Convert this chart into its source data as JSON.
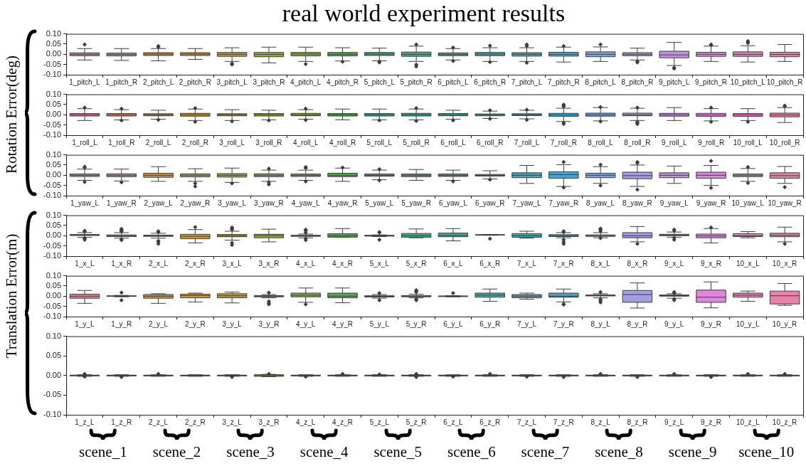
{
  "chart_data": [
    {
      "type": "box",
      "title": "real world experiment results",
      "categories": [
        "1_pitch_L",
        "1_pitch_R",
        "2_pitch_L",
        "2_pitch_R",
        "3_pitch_L",
        "3_pitch_R",
        "4_pitch_L",
        "4_pitch_R",
        "5_pitch_L",
        "5_pitch_R",
        "6_pitch_L",
        "6_pitch_R",
        "7_pitch_L",
        "7_pitch_R",
        "8_pitch_L",
        "8_pitch_R",
        "9_pitch_L",
        "9_pitch_R",
        "10_pitch_L",
        "10_pitch_R"
      ],
      "colors": [
        "#e8828c",
        "#e08a6f",
        "#d59048",
        "#c69a40",
        "#b1a03f",
        "#9da53f",
        "#84ab44",
        "#4daf4a",
        "#49ab79",
        "#47a98f",
        "#45a89e",
        "#45a8ab",
        "#46a7bb",
        "#49a4d0",
        "#7aa3e0",
        "#a39de3",
        "#c392e0",
        "#de85dc",
        "#e37fc0",
        "#e583a8"
      ],
      "marker": "diamond",
      "ylim": [
        -0.1,
        0.1
      ],
      "yticks": [
        {
          "value": -0.1,
          "label": "-0.10"
        },
        {
          "value": -0.05,
          "label": "-0.05"
        },
        {
          "value": 0,
          "label": "0.00"
        },
        {
          "value": 0.05,
          "label": "0.05"
        },
        {
          "value": 0.1,
          "label": "0.10"
        }
      ],
      "boxes": [
        {
          "low": -0.028,
          "q1": -0.007,
          "median": 0,
          "q3": 0.007,
          "high": 0.028,
          "outliers": [
            0.048
          ]
        },
        {
          "low": -0.03,
          "q1": -0.008,
          "median": -0.001,
          "q3": 0.006,
          "high": 0.028
        },
        {
          "low": -0.032,
          "q1": -0.006,
          "median": 0.001,
          "q3": 0.008,
          "high": 0.028,
          "outliers": [
            0.035,
            0.04
          ]
        },
        {
          "low": -0.025,
          "q1": -0.006,
          "median": 0.001,
          "q3": 0.008,
          "high": 0.028
        },
        {
          "low": -0.035,
          "q1": -0.01,
          "median": 0,
          "q3": 0.009,
          "high": 0.032,
          "outliers": [
            -0.045,
            -0.05
          ]
        },
        {
          "low": -0.042,
          "q1": -0.012,
          "median": -0.001,
          "q3": 0.009,
          "high": 0.035
        },
        {
          "low": -0.035,
          "q1": -0.008,
          "median": 0.001,
          "q3": 0.009,
          "high": 0.035,
          "outliers": [
            -0.048
          ]
        },
        {
          "low": -0.033,
          "q1": -0.008,
          "median": 0,
          "q3": 0.009,
          "high": 0.032,
          "outliers": [
            -0.036
          ]
        },
        {
          "low": -0.032,
          "q1": -0.006,
          "median": 0.001,
          "q3": 0.009,
          "high": 0.03,
          "outliers": [
            -0.035,
            -0.04
          ]
        },
        {
          "low": -0.035,
          "q1": -0.01,
          "median": 0,
          "q3": 0.011,
          "high": 0.04,
          "outliers": [
            0.048,
            -0.05,
            -0.06
          ]
        },
        {
          "low": -0.028,
          "q1": -0.007,
          "median": 0,
          "q3": 0.007,
          "high": 0.028,
          "outliers": [
            0.033,
            -0.033
          ]
        },
        {
          "low": -0.035,
          "q1": -0.007,
          "median": 0.001,
          "q3": 0.009,
          "high": 0.032,
          "outliers": [
            0.042,
            -0.038
          ]
        },
        {
          "low": -0.035,
          "q1": -0.009,
          "median": 0,
          "q3": 0.008,
          "high": 0.032,
          "outliers": [
            0.048,
            0.04,
            -0.042
          ]
        },
        {
          "low": -0.038,
          "q1": -0.009,
          "median": 0,
          "q3": 0.01,
          "high": 0.035,
          "outliers": [
            0.04
          ]
        },
        {
          "low": -0.035,
          "q1": -0.012,
          "median": 0,
          "q3": 0.012,
          "high": 0.036,
          "outliers": [
            0.048
          ]
        },
        {
          "low": -0.028,
          "q1": -0.007,
          "median": 0,
          "q3": 0.008,
          "high": 0.03,
          "outliers": [
            -0.035,
            -0.04
          ]
        },
        {
          "low": -0.055,
          "q1": -0.017,
          "median": -0.003,
          "q3": 0.015,
          "high": 0.058,
          "outliers": [
            -0.065,
            -0.07
          ]
        },
        {
          "low": -0.035,
          "q1": -0.01,
          "median": 0,
          "q3": 0.01,
          "high": 0.04,
          "outliers": [
            0.045,
            0.048
          ]
        },
        {
          "low": -0.038,
          "q1": -0.01,
          "median": 0,
          "q3": 0.012,
          "high": 0.042,
          "outliers": [
            0.055,
            0.06,
            0.065
          ]
        },
        {
          "low": -0.035,
          "q1": -0.012,
          "median": -0.001,
          "q3": 0.01,
          "high": 0.048
        }
      ]
    },
    {
      "type": "box",
      "ylabel": "Rotation Error(deg)",
      "categories": [
        "1_roll_L",
        "1_roll_R",
        "2_roll_L",
        "2_roll_R",
        "3_roll_L",
        "3_roll_R",
        "4_roll_L",
        "4_roll_R",
        "5_roll_L",
        "5_roll_R",
        "6_roll_L",
        "6_roll_R",
        "7_roll_L",
        "7_roll_R",
        "8_roll_L",
        "8_roll_R",
        "9_roll_L",
        "9_roll_R",
        "10_roll_L",
        "10_roll_R"
      ],
      "colors": [
        "#e8828c",
        "#e08a6f",
        "#d59048",
        "#c69a40",
        "#b1a03f",
        "#9da53f",
        "#84ab44",
        "#4daf4a",
        "#49ab79",
        "#47a98f",
        "#45a89e",
        "#45a8ab",
        "#46a7bb",
        "#49a4d0",
        "#7aa3e0",
        "#a39de3",
        "#c392e0",
        "#de85dc",
        "#e37fc0",
        "#e583a8"
      ],
      "marker": "diamond",
      "ylim": [
        -0.1,
        0.1
      ],
      "yticks": [
        {
          "value": -0.1,
          "label": "-0.10"
        },
        {
          "value": -0.05,
          "label": "-0.05"
        },
        {
          "value": 0,
          "label": "0.00"
        },
        {
          "value": 0.05,
          "label": "0.05"
        },
        {
          "value": 0.1,
          "label": "0.10"
        }
      ],
      "boxes": [
        {
          "low": -0.028,
          "q1": -0.006,
          "median": 0,
          "q3": 0.006,
          "high": 0.03,
          "outliers": [
            0.035
          ]
        },
        {
          "low": -0.025,
          "q1": -0.006,
          "median": 0,
          "q3": 0.006,
          "high": 0.025,
          "outliers": [
            0.03,
            -0.028
          ]
        },
        {
          "low": -0.022,
          "q1": -0.005,
          "median": 0,
          "q3": 0.005,
          "high": 0.022,
          "outliers": [
            -0.025
          ]
        },
        {
          "low": -0.028,
          "q1": -0.007,
          "median": 0,
          "q3": 0.007,
          "high": 0.028,
          "outliers": [
            0.032,
            -0.035
          ]
        },
        {
          "low": -0.028,
          "q1": -0.005,
          "median": 0,
          "q3": 0.005,
          "high": 0.025,
          "outliers": [
            -0.032
          ]
        },
        {
          "low": -0.025,
          "q1": -0.006,
          "median": 0,
          "q3": 0.006,
          "high": 0.022,
          "outliers": [
            -0.028
          ]
        },
        {
          "low": -0.022,
          "q1": -0.005,
          "median": 0,
          "q3": 0.007,
          "high": 0.025,
          "outliers": [
            0.03,
            -0.026
          ]
        },
        {
          "low": -0.025,
          "q1": -0.006,
          "median": 0,
          "q3": 0.006,
          "high": 0.028
        },
        {
          "low": -0.025,
          "q1": -0.006,
          "median": 0,
          "q3": 0.006,
          "high": 0.028,
          "outliers": [
            -0.028
          ]
        },
        {
          "low": -0.025,
          "q1": -0.006,
          "median": 0,
          "q3": 0.007,
          "high": 0.028,
          "outliers": [
            0.032,
            -0.03
          ]
        },
        {
          "low": -0.022,
          "q1": -0.005,
          "median": 0,
          "q3": 0.006,
          "high": 0.022,
          "outliers": [
            -0.028
          ]
        },
        {
          "low": -0.018,
          "q1": -0.005,
          "median": 0,
          "q3": 0.004,
          "high": 0.018,
          "outliers": [
            0.022,
            -0.02
          ]
        },
        {
          "low": -0.02,
          "q1": -0.004,
          "median": 0,
          "q3": 0.005,
          "high": 0.022,
          "outliers": [
            0.025,
            -0.025
          ]
        },
        {
          "low": -0.033,
          "q1": -0.008,
          "median": -0.001,
          "q3": 0.007,
          "high": 0.032,
          "outliers": [
            0.04,
            0.045,
            0.05,
            -0.04,
            -0.045
          ]
        },
        {
          "low": -0.03,
          "q1": -0.007,
          "median": 0,
          "q3": 0.008,
          "high": 0.035,
          "outliers": [
            0.038,
            -0.033
          ]
        },
        {
          "low": -0.028,
          "q1": -0.005,
          "median": 0,
          "q3": 0.008,
          "high": 0.032,
          "outliers": [
            0.035,
            -0.035,
            -0.04,
            -0.045
          ]
        },
        {
          "low": -0.028,
          "q1": -0.007,
          "median": 0,
          "q3": 0.007,
          "high": 0.035
        },
        {
          "low": -0.03,
          "q1": -0.008,
          "median": -0.001,
          "q3": 0.007,
          "high": 0.03,
          "outliers": [
            0.035,
            -0.035
          ]
        },
        {
          "low": -0.028,
          "q1": -0.008,
          "median": -0.001,
          "q3": 0.006,
          "high": 0.03,
          "outliers": [
            -0.035
          ]
        },
        {
          "low": -0.038,
          "q1": -0.01,
          "median": -0.001,
          "q3": 0.008,
          "high": 0.035,
          "outliers": [
            0.042,
            0.045
          ]
        }
      ]
    },
    {
      "type": "box",
      "categories": [
        "1_yaw_L",
        "1_yaw_R",
        "2_yaw_L",
        "2_yaw_R",
        "3_yaw_L",
        "3_yaw_R",
        "4_yaw_L",
        "4_yaw_R",
        "5_yaw_L",
        "5_yaw_R",
        "6_yaw_L",
        "6_yaw_R",
        "7_yaw_L",
        "7_yaw_R",
        "8_yaw_L",
        "8_yaw_R",
        "9_yaw_L",
        "9_yaw_R",
        "10_yaw_L",
        "10_yaw_R"
      ],
      "colors": [
        "#e8828c",
        "#e08a6f",
        "#d59048",
        "#c69a40",
        "#b1a03f",
        "#9da53f",
        "#84ab44",
        "#4daf4a",
        "#49ab79",
        "#47a98f",
        "#45a89e",
        "#45a8ab",
        "#46a7bb",
        "#49a4d0",
        "#7aa3e0",
        "#a39de3",
        "#c392e0",
        "#de85dc",
        "#e37fc0",
        "#e583a8"
      ],
      "marker": "diamond",
      "ylim": [
        -0.1,
        0.1
      ],
      "yticks": [
        {
          "value": -0.1,
          "label": "-0.10"
        },
        {
          "value": -0.05,
          "label": "-0.05"
        },
        {
          "value": 0,
          "label": "0.00"
        },
        {
          "value": 0.05,
          "label": "0.05"
        },
        {
          "value": 0.1,
          "label": "0.10"
        }
      ],
      "boxes": [
        {
          "low": -0.025,
          "q1": -0.006,
          "median": 0,
          "q3": 0.006,
          "high": 0.03,
          "outliers": [
            0.038,
            0.042,
            -0.033
          ]
        },
        {
          "low": -0.028,
          "q1": -0.007,
          "median": 0,
          "q3": 0.007,
          "high": 0.03,
          "outliers": [
            -0.035
          ]
        },
        {
          "low": -0.03,
          "q1": -0.01,
          "median": 0,
          "q3": 0.01,
          "high": 0.042
        },
        {
          "low": -0.03,
          "q1": -0.008,
          "median": 0,
          "q3": 0.007,
          "high": 0.032,
          "outliers": [
            -0.04,
            -0.055
          ]
        },
        {
          "low": -0.035,
          "q1": -0.009,
          "median": 0,
          "q3": 0.008,
          "high": 0.035,
          "outliers": [
            -0.04
          ]
        },
        {
          "low": -0.03,
          "q1": -0.007,
          "median": 0,
          "q3": 0.007,
          "high": 0.025,
          "outliers": [
            0.032,
            -0.035,
            -0.045
          ]
        },
        {
          "low": -0.025,
          "q1": -0.006,
          "median": 0,
          "q3": 0.006,
          "high": 0.025,
          "outliers": [
            0.035,
            0.04,
            -0.03
          ]
        },
        {
          "low": -0.03,
          "q1": -0.007,
          "median": 0,
          "q3": 0.01,
          "high": 0.035,
          "outliers": [
            0.038
          ]
        },
        {
          "low": -0.022,
          "q1": -0.005,
          "median": 0,
          "q3": 0.006,
          "high": 0.025,
          "outliers": [
            0.03,
            -0.025
          ]
        },
        {
          "low": -0.025,
          "q1": -0.007,
          "median": 0,
          "q3": 0.006,
          "high": 0.028
        },
        {
          "low": -0.025,
          "q1": -0.006,
          "median": 0,
          "q3": 0.006,
          "high": 0.025,
          "outliers": [
            -0.03
          ]
        },
        {
          "low": -0.018,
          "q1": -0.004,
          "median": 0,
          "q3": 0.004,
          "high": 0.022,
          "outliers": [
            -0.022
          ]
        },
        {
          "low": -0.04,
          "q1": -0.012,
          "median": 0,
          "q3": 0.012,
          "high": 0.048
        },
        {
          "low": -0.055,
          "q1": -0.015,
          "median": 0.003,
          "q3": 0.017,
          "high": 0.052,
          "outliers": [
            0.065,
            -0.06
          ]
        },
        {
          "low": -0.04,
          "q1": -0.012,
          "median": 0,
          "q3": 0.01,
          "high": 0.042,
          "outliers": [
            0.052,
            -0.05
          ]
        },
        {
          "low": -0.055,
          "q1": -0.017,
          "median": -0.002,
          "q3": 0.015,
          "high": 0.05,
          "outliers": [
            0.06,
            0.065,
            -0.07
          ]
        },
        {
          "low": -0.04,
          "q1": -0.012,
          "median": 0,
          "q3": 0.012,
          "high": 0.045
        },
        {
          "low": -0.05,
          "q1": -0.015,
          "median": 0,
          "q3": 0.015,
          "high": 0.048,
          "outliers": [
            0.07,
            -0.062
          ]
        },
        {
          "low": -0.03,
          "q1": -0.007,
          "median": 0,
          "q3": 0.006,
          "high": 0.033,
          "outliers": [
            0.04,
            -0.038
          ]
        },
        {
          "low": -0.04,
          "q1": -0.015,
          "median": -0.002,
          "q3": 0.012,
          "high": 0.043,
          "outliers": [
            -0.058
          ]
        }
      ]
    },
    {
      "type": "box",
      "categories": [
        "1_x_L",
        "1_x_R",
        "2_x_L",
        "2_x_R",
        "3_x_L",
        "3_x_R",
        "4_x_L",
        "4_x_R",
        "5_x_L",
        "5_x_R",
        "6_x_L",
        "6_x_R",
        "7_x_L",
        "7_x_R",
        "8_x_L",
        "8_x_R",
        "9_x_L",
        "9_x_R",
        "10_x_L",
        "10_x_R"
      ],
      "colors": [
        "#e8828c",
        "#e08a6f",
        "#d59048",
        "#c69a40",
        "#b1a03f",
        "#9da53f",
        "#84ab44",
        "#4daf4a",
        "#49ab79",
        "#47a98f",
        "#45a89e",
        "#45a8ab",
        "#46a7bb",
        "#49a4d0",
        "#7aa3e0",
        "#a39de3",
        "#c392e0",
        "#de85dc",
        "#e37fc0",
        "#e583a8"
      ],
      "marker": "diamond",
      "ylim": [
        -0.1,
        0.1
      ],
      "yticks": [
        {
          "value": -0.1,
          "label": "-0.10"
        },
        {
          "value": -0.05,
          "label": "-0.05"
        },
        {
          "value": 0,
          "label": "0.00"
        },
        {
          "value": 0.05,
          "label": "0.05"
        },
        {
          "value": 0.1,
          "label": "0.10"
        }
      ],
      "boxes": [
        {
          "low": -0.008,
          "q1": 0.001,
          "median": 0.003,
          "q3": 0.006,
          "high": 0.015,
          "outliers": [
            0.02,
            0.025,
            -0.012,
            -0.015,
            -0.02
          ]
        },
        {
          "low": -0.012,
          "q1": -0.004,
          "median": 0,
          "q3": 0.004,
          "high": 0.015,
          "outliers": [
            0.02,
            0.025,
            0.03,
            0.033,
            -0.018,
            -0.022
          ]
        },
        {
          "low": -0.012,
          "q1": -0.003,
          "median": 0,
          "q3": 0.003,
          "high": 0.012,
          "outliers": [
            0.018,
            0.022,
            -0.025,
            -0.03,
            -0.04
          ]
        },
        {
          "low": -0.035,
          "q1": -0.015,
          "median": -0.003,
          "q3": 0.007,
          "high": 0.03,
          "outliers": [
            0.042
          ]
        },
        {
          "low": -0.022,
          "q1": -0.005,
          "median": 0,
          "q3": 0.006,
          "high": 0.022,
          "outliers": [
            0.03,
            0.035,
            0.04,
            -0.035,
            -0.045
          ]
        },
        {
          "low": -0.03,
          "q1": -0.01,
          "median": 0.001,
          "q3": 0.007,
          "high": 0.032
        },
        {
          "low": -0.01,
          "q1": -0.003,
          "median": 0,
          "q3": 0.002,
          "high": 0.008,
          "outliers": [
            0.015,
            0.025,
            0.03,
            -0.015,
            -0.022
          ]
        },
        {
          "low": -0.008,
          "q1": -0.007,
          "median": 0,
          "q3": 0.01,
          "high": 0.035
        },
        {
          "low": -0.004,
          "q1": -0.002,
          "median": 0,
          "q3": 0.002,
          "high": 0.004,
          "outliers": [
            0.015,
            0.018,
            -0.02
          ]
        },
        {
          "low": -0.01,
          "q1": -0.008,
          "median": 0,
          "q3": 0.011,
          "high": 0.033
        },
        {
          "low": -0.025,
          "q1": -0.005,
          "median": 0.001,
          "q3": 0.013,
          "high": 0.035
        },
        {
          "low": 0.002,
          "q1": 0.003,
          "median": 0.004,
          "q3": 0.005,
          "high": 0.006,
          "outliers": [
            -0.015
          ]
        },
        {
          "low": -0.012,
          "q1": -0.008,
          "median": 0,
          "q3": 0.01,
          "high": 0.022
        },
        {
          "low": -0.01,
          "q1": -0.004,
          "median": 0,
          "q3": 0.005,
          "high": 0.015,
          "outliers": [
            0.018,
            0.022,
            -0.02,
            -0.03,
            -0.04
          ]
        },
        {
          "low": -0.01,
          "q1": -0.003,
          "median": 0,
          "q3": 0.004,
          "high": 0.015,
          "outliers": [
            0.022,
            0.03,
            0.035,
            -0.012
          ]
        },
        {
          "low": -0.03,
          "q1": -0.01,
          "median": 0,
          "q3": 0.015,
          "high": 0.045,
          "outliers": [
            -0.04
          ]
        },
        {
          "low": -0.008,
          "q1": 0,
          "median": 0.003,
          "q3": 0.007,
          "high": 0.018,
          "outliers": [
            0.025,
            0.03,
            -0.01,
            -0.02
          ]
        },
        {
          "low": -0.035,
          "q1": -0.01,
          "median": -0.001,
          "q3": 0.008,
          "high": 0.035,
          "outliers": [
            0.04
          ]
        },
        {
          "low": -0.01,
          "q1": -0.004,
          "median": 0,
          "q3": 0.01,
          "high": 0.02
        },
        {
          "low": -0.03,
          "q1": -0.005,
          "median": 0.002,
          "q3": 0.012,
          "high": 0.042,
          "outliers": [
            -0.04
          ]
        }
      ]
    },
    {
      "type": "box",
      "ylabel": "Translation Error(m)",
      "categories": [
        "1_y_L",
        "1_y_R",
        "2_y_L",
        "2_y_R",
        "3_y_L",
        "3_y_R",
        "4_y_L",
        "4_y_R",
        "5_y_L",
        "5_y_R",
        "6_y_L",
        "6_y_R",
        "7_y_L",
        "7_y_R",
        "8_y_L",
        "8_y_R",
        "9_y_L",
        "9_y_R",
        "10_y_L",
        "10_y_R"
      ],
      "colors": [
        "#e8828c",
        "#e08a6f",
        "#d59048",
        "#c69a40",
        "#b1a03f",
        "#9da53f",
        "#84ab44",
        "#4daf4a",
        "#49ab79",
        "#47a98f",
        "#45a89e",
        "#45a8ab",
        "#46a7bb",
        "#49a4d0",
        "#7aa3e0",
        "#a39de3",
        "#c392e0",
        "#de85dc",
        "#e37fc0",
        "#e583a8"
      ],
      "marker": "diamond",
      "ylim": [
        -0.1,
        0.1
      ],
      "yticks": [
        {
          "value": -0.1,
          "label": "-0.10"
        },
        {
          "value": -0.05,
          "label": "-0.05"
        },
        {
          "value": 0,
          "label": "0.00"
        },
        {
          "value": 0.05,
          "label": "0.05"
        },
        {
          "value": 0.1,
          "label": "0.10"
        }
      ],
      "boxes": [
        {
          "low": -0.035,
          "q1": -0.01,
          "median": 0,
          "q3": 0.01,
          "high": 0.028
        },
        {
          "low": -0.003,
          "q1": -0.001,
          "median": 0,
          "q3": 0.002,
          "high": 0.004,
          "outliers": [
            0.018,
            -0.02
          ]
        },
        {
          "low": -0.035,
          "q1": -0.01,
          "median": 0,
          "q3": 0.008,
          "high": 0.012
        },
        {
          "low": -0.028,
          "q1": -0.008,
          "median": 0.003,
          "q3": 0.01,
          "high": 0.015
        },
        {
          "low": -0.033,
          "q1": -0.008,
          "median": 0.002,
          "q3": 0.012,
          "high": 0.02
        },
        {
          "low": -0.008,
          "q1": -0.003,
          "median": 0,
          "q3": 0.003,
          "high": 0.008,
          "outliers": [
            0.018,
            -0.025,
            -0.035,
            -0.04
          ]
        },
        {
          "low": -0.03,
          "q1": -0.003,
          "median": 0.005,
          "q3": 0.015,
          "high": 0.04,
          "outliers": [
            -0.04
          ]
        },
        {
          "low": -0.032,
          "q1": -0.008,
          "median": 0,
          "q3": 0.015,
          "high": 0.04
        },
        {
          "low": -0.01,
          "q1": -0.004,
          "median": 0,
          "q3": 0.002,
          "high": 0.008,
          "outliers": [
            0.015,
            -0.02
          ]
        },
        {
          "low": -0.008,
          "q1": -0.003,
          "median": 0,
          "q3": 0.003,
          "high": 0.01,
          "outliers": [
            0.02,
            0.025,
            0.03,
            -0.015,
            -0.02
          ]
        },
        {
          "low": -0.003,
          "q1": -0.002,
          "median": 0,
          "q3": 0.001,
          "high": 0.002,
          "outliers": [
            0.015
          ]
        },
        {
          "low": -0.025,
          "q1": -0.005,
          "median": 0.005,
          "q3": 0.015,
          "high": 0.035
        },
        {
          "low": -0.015,
          "q1": -0.008,
          "median": 0,
          "q3": 0.008,
          "high": 0.015
        },
        {
          "low": -0.028,
          "q1": -0.005,
          "median": 0,
          "q3": 0.015,
          "high": 0.035,
          "outliers": [
            -0.038,
            -0.042
          ]
        },
        {
          "low": -0.008,
          "q1": 0.001,
          "median": 0.004,
          "q3": 0.006,
          "high": 0.012,
          "outliers": [
            0.02,
            -0.015,
            -0.022,
            -0.03
          ]
        },
        {
          "low": -0.058,
          "q1": -0.03,
          "median": 0.008,
          "q3": 0.028,
          "high": 0.065
        },
        {
          "low": -0.01,
          "q1": 0,
          "median": 0.003,
          "q3": 0.006,
          "high": 0.012,
          "outliers": [
            0.02,
            0.015,
            -0.015,
            -0.02
          ]
        },
        {
          "low": -0.057,
          "q1": -0.03,
          "median": -0.005,
          "q3": 0.03,
          "high": 0.07
        },
        {
          "low": -0.025,
          "q1": -0.005,
          "median": 0.005,
          "q3": 0.015,
          "high": 0.025
        },
        {
          "low": -0.045,
          "q1": -0.038,
          "median": 0.002,
          "q3": 0.025,
          "high": 0.062
        }
      ]
    },
    {
      "type": "box",
      "categories": [
        "1_z_L",
        "1_z_R",
        "2_z_L",
        "2_z_R",
        "3_z_L",
        "3_z_R",
        "4_z_L",
        "4_z_R",
        "5_z_L",
        "5_z_R",
        "6_z_L",
        "6_z_R",
        "7_z_L",
        "7_z_R",
        "8_z_L",
        "8_z_R",
        "9_z_L",
        "9_z_R",
        "10_z_L",
        "10_z_R"
      ],
      "colors": [
        "#e8828c",
        "#e08a6f",
        "#d59048",
        "#c69a40",
        "#b1a03f",
        "#9da53f",
        "#84ab44",
        "#4daf4a",
        "#49ab79",
        "#47a98f",
        "#45a89e",
        "#45a8ab",
        "#46a7bb",
        "#49a4d0",
        "#7aa3e0",
        "#a39de3",
        "#c392e0",
        "#de85dc",
        "#e37fc0",
        "#e583a8"
      ],
      "marker": "diamond",
      "ylim": [
        -0.1,
        0.1
      ],
      "yticks": [
        {
          "value": -0.1,
          "label": "-0.10"
        },
        {
          "value": -0.05,
          "label": "-0.05"
        },
        {
          "value": 0,
          "label": "0.00"
        },
        {
          "value": 0.05,
          "label": "0.05"
        },
        {
          "value": 0.1,
          "label": "0.10"
        }
      ],
      "annotations": [
        "scene_1",
        "scene_2",
        "scene_3",
        "scene_4",
        "scene_5",
        "scene_6",
        "scene_7",
        "scene_8",
        "scene_9",
        "scene_10"
      ],
      "boxes": [
        {
          "low": -0.002,
          "q1": -0.001,
          "median": 0,
          "q3": 0.001,
          "high": 0.002,
          "outliers": [
            0.004,
            -0.003
          ]
        },
        {
          "low": -0.002,
          "q1": -0.001,
          "median": 0,
          "q3": 0.001,
          "high": 0.002,
          "outliers": [
            -0.004
          ]
        },
        {
          "low": -0.002,
          "q1": -0.001,
          "median": 0,
          "q3": 0.001,
          "high": 0.002,
          "outliers": [
            0.004
          ]
        },
        {
          "low": -0.002,
          "q1": -0.001,
          "median": 0,
          "q3": 0.001,
          "high": 0.002
        },
        {
          "low": -0.002,
          "q1": -0.001,
          "median": 0,
          "q3": 0.001,
          "high": 0.002,
          "outliers": [
            -0.004
          ]
        },
        {
          "low": -0.003,
          "q1": -0.002,
          "median": 0,
          "q3": 0.002,
          "high": 0.003,
          "outliers": [
            0.004
          ]
        },
        {
          "low": -0.002,
          "q1": -0.001,
          "median": 0,
          "q3": 0.001,
          "high": 0.002,
          "outliers": [
            -0.003
          ]
        },
        {
          "low": -0.002,
          "q1": -0.001,
          "median": 0,
          "q3": 0.001,
          "high": 0.002,
          "outliers": [
            0.004
          ]
        },
        {
          "low": -0.002,
          "q1": -0.001,
          "median": 0,
          "q3": 0.001,
          "high": 0.002,
          "outliers": [
            0.003
          ]
        },
        {
          "low": -0.002,
          "q1": -0.001,
          "median": 0,
          "q3": 0.001,
          "high": 0.002,
          "outliers": [
            0.004,
            -0.004
          ]
        },
        {
          "low": -0.002,
          "q1": -0.001,
          "median": 0,
          "q3": 0.001,
          "high": 0.002,
          "outliers": [
            -0.003
          ]
        },
        {
          "low": -0.002,
          "q1": -0.001,
          "median": 0,
          "q3": 0.001,
          "high": 0.002,
          "outliers": [
            0.004
          ]
        },
        {
          "low": -0.002,
          "q1": -0.001,
          "median": 0,
          "q3": 0.001,
          "high": 0.002,
          "outliers": [
            -0.003
          ]
        },
        {
          "low": -0.002,
          "q1": -0.001,
          "median": 0,
          "q3": 0.001,
          "high": 0.002,
          "outliers": [
            -0.004
          ]
        },
        {
          "low": -0.002,
          "q1": -0.001,
          "median": 0,
          "q3": 0.001,
          "high": 0.002,
          "outliers": [
            0.004
          ]
        },
        {
          "low": -0.002,
          "q1": -0.001,
          "median": 0,
          "q3": 0.001,
          "high": 0.002,
          "outliers": [
            -0.004
          ]
        },
        {
          "low": -0.002,
          "q1": -0.001,
          "median": 0,
          "q3": 0.001,
          "high": 0.002,
          "outliers": [
            0.004
          ]
        },
        {
          "low": -0.002,
          "q1": -0.001,
          "median": 0,
          "q3": 0.001,
          "high": 0.002,
          "outliers": [
            -0.004
          ]
        },
        {
          "low": -0.002,
          "q1": -0.001,
          "median": 0,
          "q3": 0.001,
          "high": 0.002,
          "outliers": [
            0.004
          ]
        },
        {
          "low": -0.002,
          "q1": -0.001,
          "median": 0,
          "q3": 0.001,
          "high": 0.002,
          "outliers": [
            0.004
          ]
        }
      ]
    }
  ]
}
